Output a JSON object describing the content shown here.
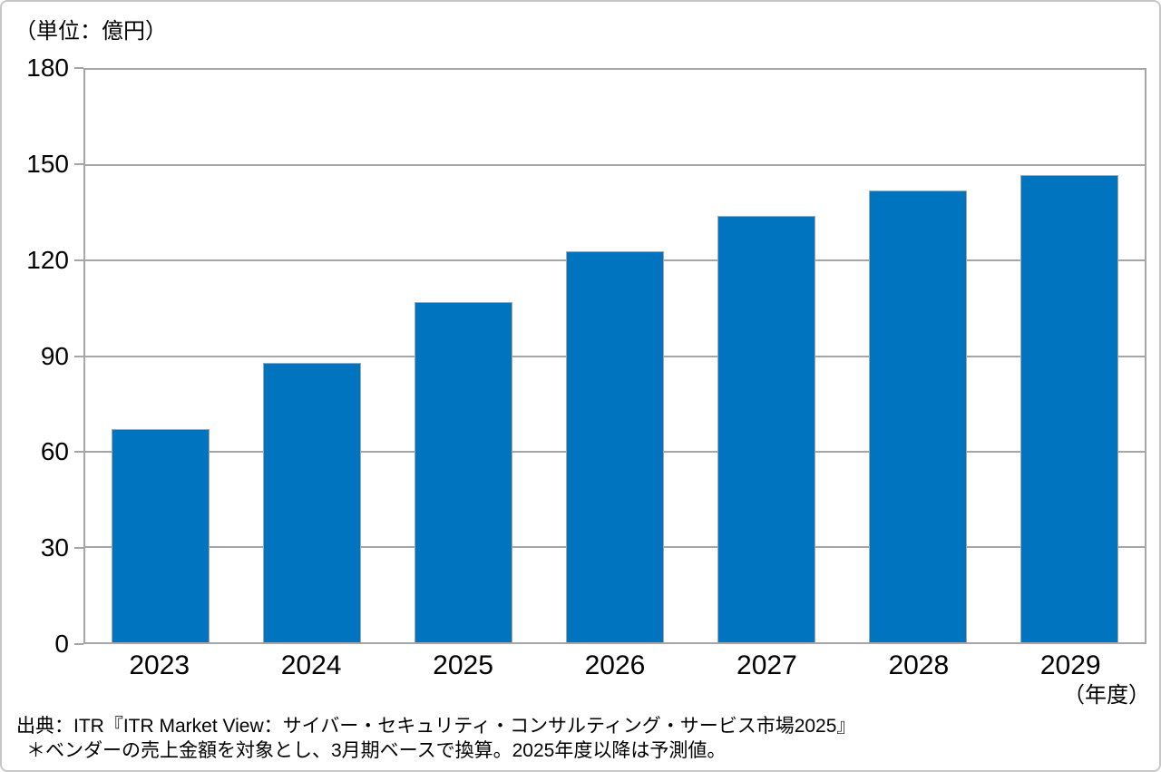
{
  "chart_data": {
    "type": "bar",
    "unit_label": "（単位：億円）",
    "x_axis_unit_label": "（年度）",
    "categories": [
      "2023",
      "2024",
      "2025",
      "2026",
      "2027",
      "2028",
      "2029"
    ],
    "values": [
      67,
      88,
      107,
      123,
      134,
      142,
      147
    ],
    "ylim": [
      0,
      180
    ],
    "yticks": [
      0,
      30,
      60,
      90,
      120,
      150,
      180
    ],
    "grid": true,
    "legend_position": "none",
    "bar_color": "#0074be",
    "grid_color": "#a6a6a6",
    "source_line": "出典：ITR『ITR Market View：サイバー・セキュリティ・コンサルティング・サービス市場2025』",
    "footnote_line": "＊ベンダーの売上金額を対象とし、3月期ベースで換算。2025年度以降は予測値。"
  }
}
